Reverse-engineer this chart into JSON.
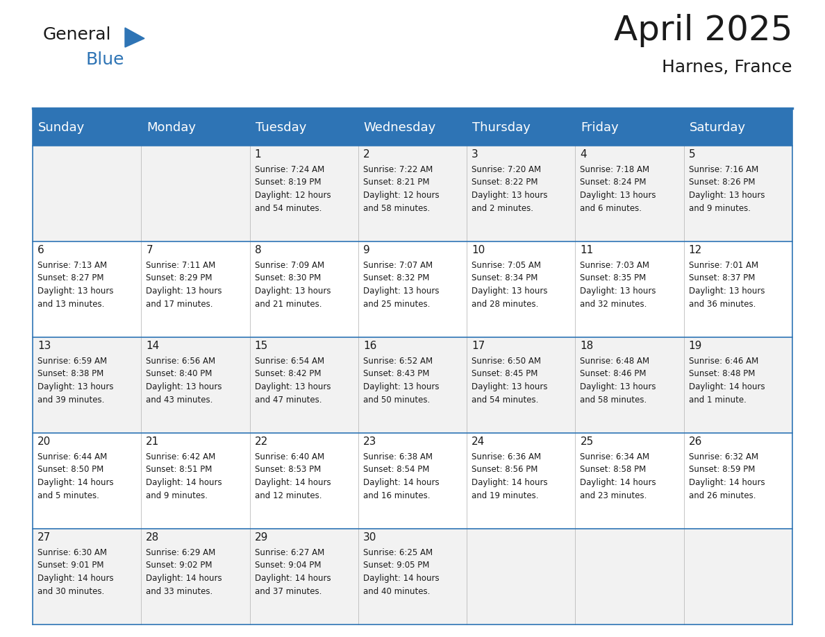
{
  "title": "April 2025",
  "subtitle": "Harnes, France",
  "header_color": "#2E74B5",
  "header_text_color": "#FFFFFF",
  "cell_bg_color": "#F2F2F2",
  "cell_alt_bg_color": "#FFFFFF",
  "day_headers": [
    "Sunday",
    "Monday",
    "Tuesday",
    "Wednesday",
    "Thursday",
    "Friday",
    "Saturday"
  ],
  "weeks": [
    [
      {
        "day": "",
        "sunrise": "",
        "sunset": "",
        "daylight": ""
      },
      {
        "day": "",
        "sunrise": "",
        "sunset": "",
        "daylight": ""
      },
      {
        "day": "1",
        "sunrise": "Sunrise: 7:24 AM",
        "sunset": "Sunset: 8:19 PM",
        "daylight": "Daylight: 12 hours\nand 54 minutes."
      },
      {
        "day": "2",
        "sunrise": "Sunrise: 7:22 AM",
        "sunset": "Sunset: 8:21 PM",
        "daylight": "Daylight: 12 hours\nand 58 minutes."
      },
      {
        "day": "3",
        "sunrise": "Sunrise: 7:20 AM",
        "sunset": "Sunset: 8:22 PM",
        "daylight": "Daylight: 13 hours\nand 2 minutes."
      },
      {
        "day": "4",
        "sunrise": "Sunrise: 7:18 AM",
        "sunset": "Sunset: 8:24 PM",
        "daylight": "Daylight: 13 hours\nand 6 minutes."
      },
      {
        "day": "5",
        "sunrise": "Sunrise: 7:16 AM",
        "sunset": "Sunset: 8:26 PM",
        "daylight": "Daylight: 13 hours\nand 9 minutes."
      }
    ],
    [
      {
        "day": "6",
        "sunrise": "Sunrise: 7:13 AM",
        "sunset": "Sunset: 8:27 PM",
        "daylight": "Daylight: 13 hours\nand 13 minutes."
      },
      {
        "day": "7",
        "sunrise": "Sunrise: 7:11 AM",
        "sunset": "Sunset: 8:29 PM",
        "daylight": "Daylight: 13 hours\nand 17 minutes."
      },
      {
        "day": "8",
        "sunrise": "Sunrise: 7:09 AM",
        "sunset": "Sunset: 8:30 PM",
        "daylight": "Daylight: 13 hours\nand 21 minutes."
      },
      {
        "day": "9",
        "sunrise": "Sunrise: 7:07 AM",
        "sunset": "Sunset: 8:32 PM",
        "daylight": "Daylight: 13 hours\nand 25 minutes."
      },
      {
        "day": "10",
        "sunrise": "Sunrise: 7:05 AM",
        "sunset": "Sunset: 8:34 PM",
        "daylight": "Daylight: 13 hours\nand 28 minutes."
      },
      {
        "day": "11",
        "sunrise": "Sunrise: 7:03 AM",
        "sunset": "Sunset: 8:35 PM",
        "daylight": "Daylight: 13 hours\nand 32 minutes."
      },
      {
        "day": "12",
        "sunrise": "Sunrise: 7:01 AM",
        "sunset": "Sunset: 8:37 PM",
        "daylight": "Daylight: 13 hours\nand 36 minutes."
      }
    ],
    [
      {
        "day": "13",
        "sunrise": "Sunrise: 6:59 AM",
        "sunset": "Sunset: 8:38 PM",
        "daylight": "Daylight: 13 hours\nand 39 minutes."
      },
      {
        "day": "14",
        "sunrise": "Sunrise: 6:56 AM",
        "sunset": "Sunset: 8:40 PM",
        "daylight": "Daylight: 13 hours\nand 43 minutes."
      },
      {
        "day": "15",
        "sunrise": "Sunrise: 6:54 AM",
        "sunset": "Sunset: 8:42 PM",
        "daylight": "Daylight: 13 hours\nand 47 minutes."
      },
      {
        "day": "16",
        "sunrise": "Sunrise: 6:52 AM",
        "sunset": "Sunset: 8:43 PM",
        "daylight": "Daylight: 13 hours\nand 50 minutes."
      },
      {
        "day": "17",
        "sunrise": "Sunrise: 6:50 AM",
        "sunset": "Sunset: 8:45 PM",
        "daylight": "Daylight: 13 hours\nand 54 minutes."
      },
      {
        "day": "18",
        "sunrise": "Sunrise: 6:48 AM",
        "sunset": "Sunset: 8:46 PM",
        "daylight": "Daylight: 13 hours\nand 58 minutes."
      },
      {
        "day": "19",
        "sunrise": "Sunrise: 6:46 AM",
        "sunset": "Sunset: 8:48 PM",
        "daylight": "Daylight: 14 hours\nand 1 minute."
      }
    ],
    [
      {
        "day": "20",
        "sunrise": "Sunrise: 6:44 AM",
        "sunset": "Sunset: 8:50 PM",
        "daylight": "Daylight: 14 hours\nand 5 minutes."
      },
      {
        "day": "21",
        "sunrise": "Sunrise: 6:42 AM",
        "sunset": "Sunset: 8:51 PM",
        "daylight": "Daylight: 14 hours\nand 9 minutes."
      },
      {
        "day": "22",
        "sunrise": "Sunrise: 6:40 AM",
        "sunset": "Sunset: 8:53 PM",
        "daylight": "Daylight: 14 hours\nand 12 minutes."
      },
      {
        "day": "23",
        "sunrise": "Sunrise: 6:38 AM",
        "sunset": "Sunset: 8:54 PM",
        "daylight": "Daylight: 14 hours\nand 16 minutes."
      },
      {
        "day": "24",
        "sunrise": "Sunrise: 6:36 AM",
        "sunset": "Sunset: 8:56 PM",
        "daylight": "Daylight: 14 hours\nand 19 minutes."
      },
      {
        "day": "25",
        "sunrise": "Sunrise: 6:34 AM",
        "sunset": "Sunset: 8:58 PM",
        "daylight": "Daylight: 14 hours\nand 23 minutes."
      },
      {
        "day": "26",
        "sunrise": "Sunrise: 6:32 AM",
        "sunset": "Sunset: 8:59 PM",
        "daylight": "Daylight: 14 hours\nand 26 minutes."
      }
    ],
    [
      {
        "day": "27",
        "sunrise": "Sunrise: 6:30 AM",
        "sunset": "Sunset: 9:01 PM",
        "daylight": "Daylight: 14 hours\nand 30 minutes."
      },
      {
        "day": "28",
        "sunrise": "Sunrise: 6:29 AM",
        "sunset": "Sunset: 9:02 PM",
        "daylight": "Daylight: 14 hours\nand 33 minutes."
      },
      {
        "day": "29",
        "sunrise": "Sunrise: 6:27 AM",
        "sunset": "Sunset: 9:04 PM",
        "daylight": "Daylight: 14 hours\nand 37 minutes."
      },
      {
        "day": "30",
        "sunrise": "Sunrise: 6:25 AM",
        "sunset": "Sunset: 9:05 PM",
        "daylight": "Daylight: 14 hours\nand 40 minutes."
      },
      {
        "day": "",
        "sunrise": "",
        "sunset": "",
        "daylight": ""
      },
      {
        "day": "",
        "sunrise": "",
        "sunset": "",
        "daylight": ""
      },
      {
        "day": "",
        "sunrise": "",
        "sunset": "",
        "daylight": ""
      }
    ]
  ],
  "logo_color_general": "#1a1a1a",
  "logo_color_blue": "#2E74B5",
  "logo_triangle_color": "#2E74B5",
  "divider_color": "#2E74B5",
  "text_color": "#1a1a1a",
  "day_number_fontsize": 11,
  "cell_text_fontsize": 8.5,
  "header_fontsize": 13,
  "title_fontsize": 36,
  "subtitle_fontsize": 18,
  "logo_fontsize": 18
}
